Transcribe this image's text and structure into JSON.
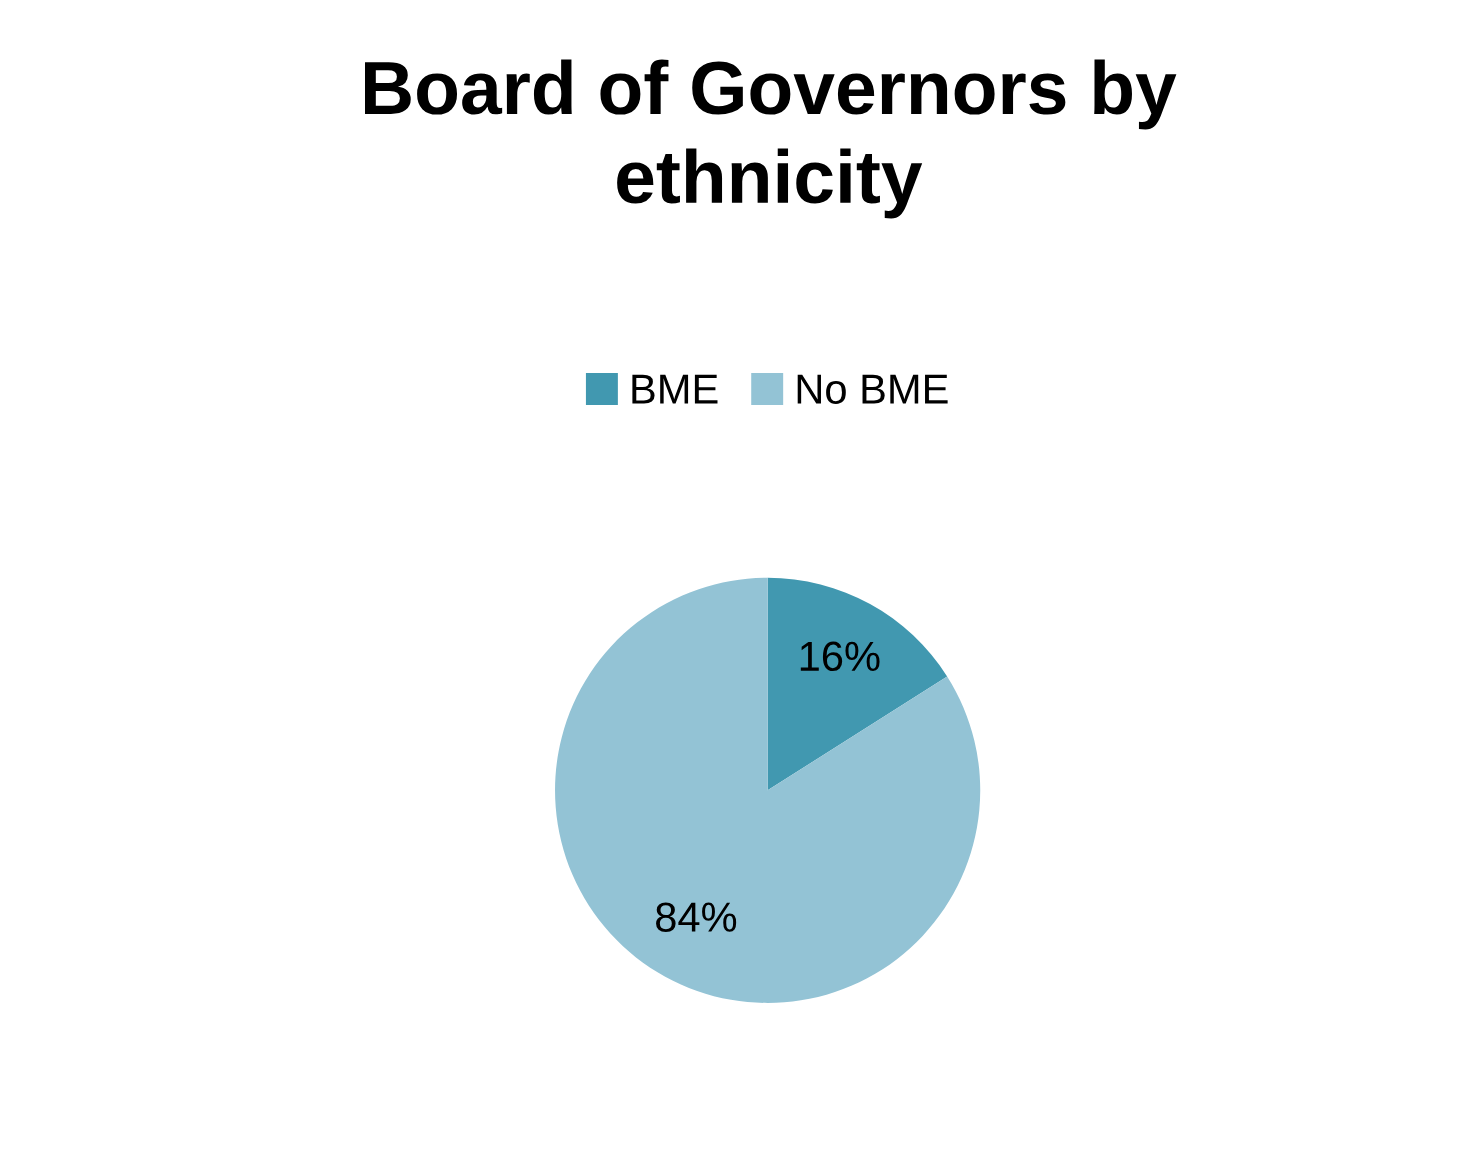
{
  "chart_data": {
    "type": "pie",
    "title": "Board of Governors by\nethnicity",
    "categories": [
      "BME",
      "No BME"
    ],
    "values": [
      16,
      84
    ],
    "colors": [
      "#4198b0",
      "#93c3d5"
    ],
    "value_labels": [
      "16%",
      "84%"
    ],
    "legend": "top"
  }
}
